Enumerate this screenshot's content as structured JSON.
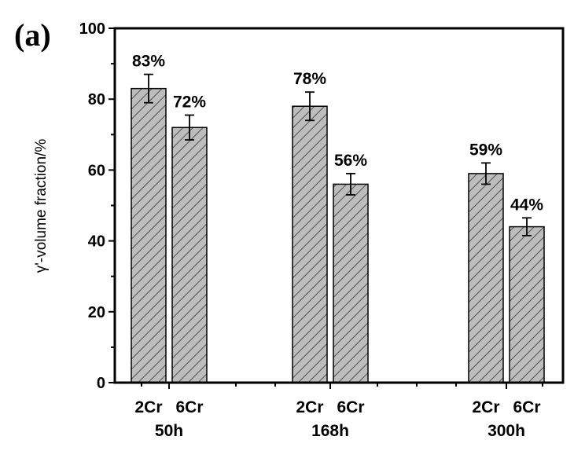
{
  "panel_label": "(a)",
  "chart_data": {
    "type": "bar",
    "title": "",
    "xlabel": "",
    "ylabel": "γ'-volume fraction/%",
    "ylim": [
      0,
      100
    ],
    "yticks": [
      0,
      20,
      40,
      60,
      80,
      100
    ],
    "groups": [
      "50h",
      "168h",
      "300h"
    ],
    "categories": [
      "2Cr",
      "6Cr"
    ],
    "bars": [
      {
        "group": "50h",
        "category": "2Cr",
        "value": 83,
        "error": 4.0,
        "label": "83%"
      },
      {
        "group": "50h",
        "category": "6Cr",
        "value": 72,
        "error": 3.5,
        "label": "72%"
      },
      {
        "group": "168h",
        "category": "2Cr",
        "value": 78,
        "error": 4.0,
        "label": "78%"
      },
      {
        "group": "168h",
        "category": "6Cr",
        "value": 56,
        "error": 3.0,
        "label": "56%"
      },
      {
        "group": "300h",
        "category": "2Cr",
        "value": 59,
        "error": 3.0,
        "label": "59%"
      },
      {
        "group": "300h",
        "category": "6Cr",
        "value": 44,
        "error": 2.5,
        "label": "44%"
      }
    ],
    "bar_fill": "#bdbdbd",
    "hatch_color": "#333333",
    "grid": false,
    "legend": "none"
  }
}
